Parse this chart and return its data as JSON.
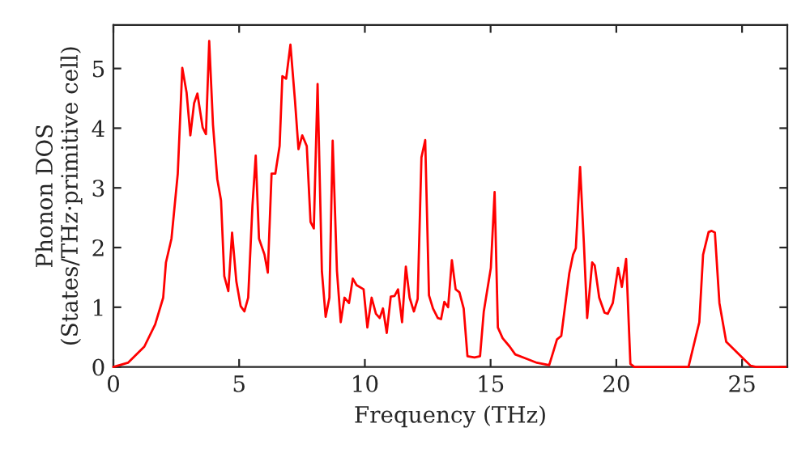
{
  "chart_data": {
    "type": "line",
    "xlabel": "Frequency (THz)",
    "ylabel": "Phonon DOS\n(States/THz·primitive cell)",
    "xlim": [
      0,
      26.8
    ],
    "ylim": [
      0,
      5.73
    ],
    "xticks": [
      0,
      5,
      10,
      15,
      20,
      25
    ],
    "yticks": [
      0,
      1,
      2,
      3,
      4,
      5
    ],
    "grid": false,
    "marker": "none",
    "line_style": "solid",
    "series": [
      {
        "color": "#ff0000",
        "x": [
          0,
          0.58,
          1.23,
          1.66,
          1.98,
          2.09,
          2.31,
          2.56,
          2.74,
          2.91,
          3.06,
          3.21,
          3.34,
          3.55,
          3.68,
          3.81,
          3.96,
          4.13,
          4.28,
          4.41,
          4.57,
          4.72,
          4.89,
          5.06,
          5.21,
          5.36,
          5.53,
          5.66,
          5.79,
          6.01,
          6.14,
          6.29,
          6.44,
          6.61,
          6.72,
          6.87,
          7.04,
          7.22,
          7.36,
          7.51,
          7.69,
          7.84,
          7.97,
          8.12,
          8.29,
          8.44,
          8.59,
          8.72,
          8.89,
          9.04,
          9.19,
          9.37,
          9.52,
          9.67,
          9.95,
          10.1,
          10.27,
          10.44,
          10.59,
          10.72,
          10.87,
          11.03,
          11.18,
          11.32,
          11.48,
          11.63,
          11.78,
          11.95,
          12.1,
          12.25,
          12.4,
          12.55,
          12.71,
          12.9,
          13.03,
          13.16,
          13.31,
          13.46,
          13.61,
          13.76,
          13.93,
          14.08,
          14.36,
          14.58,
          14.73,
          15.01,
          15.16,
          15.29,
          15.48,
          15.76,
          15.98,
          16.41,
          16.84,
          17.33,
          17.49,
          17.64,
          17.81,
          18.13,
          18.28,
          18.39,
          18.56,
          18.71,
          18.84,
          19.04,
          19.14,
          19.32,
          19.53,
          19.66,
          19.86,
          20.07,
          20.22,
          20.39,
          20.56,
          20.72,
          22.87,
          23.3,
          23.45,
          23.67,
          23.79,
          23.92,
          24.1,
          24.37,
          24.95,
          25.34,
          25.56,
          26.74
        ],
        "values": [
          0,
          0.07,
          0.34,
          0.71,
          1.16,
          1.75,
          2.15,
          3.24,
          5.01,
          4.6,
          3.88,
          4.42,
          4.58,
          4.01,
          3.9,
          5.46,
          4.06,
          3.15,
          2.79,
          1.52,
          1.27,
          2.25,
          1.43,
          1.02,
          0.93,
          1.16,
          2.7,
          3.54,
          2.15,
          1.88,
          1.58,
          3.24,
          3.24,
          3.7,
          4.87,
          4.83,
          5.4,
          4.47,
          3.65,
          3.88,
          3.7,
          2.43,
          2.32,
          4.74,
          1.61,
          0.84,
          1.16,
          3.79,
          1.61,
          0.75,
          1.16,
          1.07,
          1.48,
          1.37,
          1.3,
          0.66,
          1.16,
          0.89,
          0.82,
          0.98,
          0.57,
          1.18,
          1.19,
          1.3,
          0.75,
          1.68,
          1.16,
          0.93,
          1.14,
          3.51,
          3.8,
          1.2,
          0.98,
          0.82,
          0.8,
          1.09,
          1.0,
          1.79,
          1.3,
          1.25,
          0.98,
          0.18,
          0.16,
          0.18,
          0.93,
          1.66,
          2.93,
          0.66,
          0.48,
          0.34,
          0.21,
          0.14,
          0.07,
          0.03,
          0.25,
          0.46,
          0.52,
          1.57,
          1.88,
          1.99,
          3.35,
          2.07,
          0.82,
          1.75,
          1.7,
          1.16,
          0.91,
          0.89,
          1.07,
          1.66,
          1.34,
          1.81,
          0.05,
          0,
          0,
          0.75,
          1.88,
          2.26,
          2.28,
          2.25,
          1.07,
          0.42,
          0.18,
          0.02,
          0,
          0
        ]
      }
    ]
  }
}
